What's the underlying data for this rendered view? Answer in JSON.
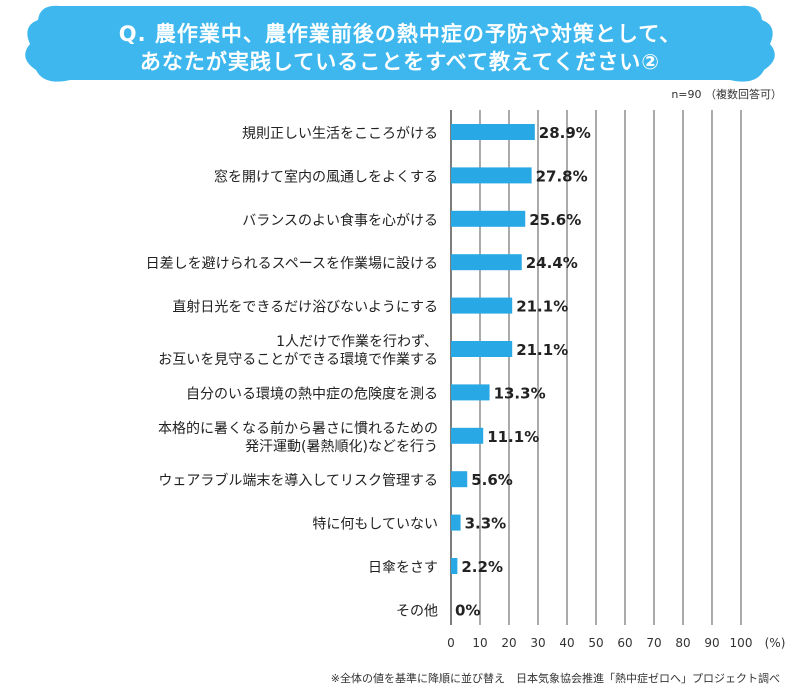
{
  "title": {
    "line1": "Q. 農作業中、農作業前後の熱中症の予防や対策として、",
    "line2": "あなたが実践していることをすべて教えてください②"
  },
  "note_n": "n=90 （複数回答可）",
  "footer": "※全体の値を基準に降順に並び替え　日本気象協会推進「熱中症ゼロへ」プロジェクト調べ",
  "colors": {
    "bar": "#29a8e6",
    "banner": "#3db7ee",
    "grid": "#444444"
  },
  "chart_data": {
    "type": "bar",
    "orientation": "horizontal",
    "unit_label": "(%)",
    "xlim": [
      0,
      100
    ],
    "ticks": [
      "0",
      "10",
      "20",
      "30",
      "40",
      "50",
      "60",
      "70",
      "80",
      "90",
      "100"
    ],
    "categories": [
      [
        "規則正しい生活をこころがける"
      ],
      [
        "窓を開けて室内の風通しをよくする"
      ],
      [
        "バランスのよい食事を心がける"
      ],
      [
        "日差しを避けられるスペースを作業場に設ける"
      ],
      [
        "直射日光をできるだけ浴びないようにする"
      ],
      [
        "1人だけで作業を行わず、",
        "お互いを見守ることができる環境で作業する"
      ],
      [
        "自分のいる環境の熱中症の危険度を測る"
      ],
      [
        "本格的に暑くなる前から暑さに慣れるための",
        "発汗運動(暑熱順化)などを行う"
      ],
      [
        "ウェアラブル端末を導入してリスク管理する"
      ],
      [
        "特に何もしていない"
      ],
      [
        "日傘をさす"
      ],
      [
        "その他"
      ]
    ],
    "values": [
      28.9,
      27.8,
      25.6,
      24.4,
      21.1,
      21.1,
      13.3,
      11.1,
      5.6,
      3.3,
      2.2,
      0
    ],
    "value_labels": [
      "28.9%",
      "27.8%",
      "25.6%",
      "24.4%",
      "21.1%",
      "21.1%",
      "13.3%",
      "11.1%",
      "5.6%",
      "3.3%",
      "2.2%",
      "0%"
    ]
  }
}
